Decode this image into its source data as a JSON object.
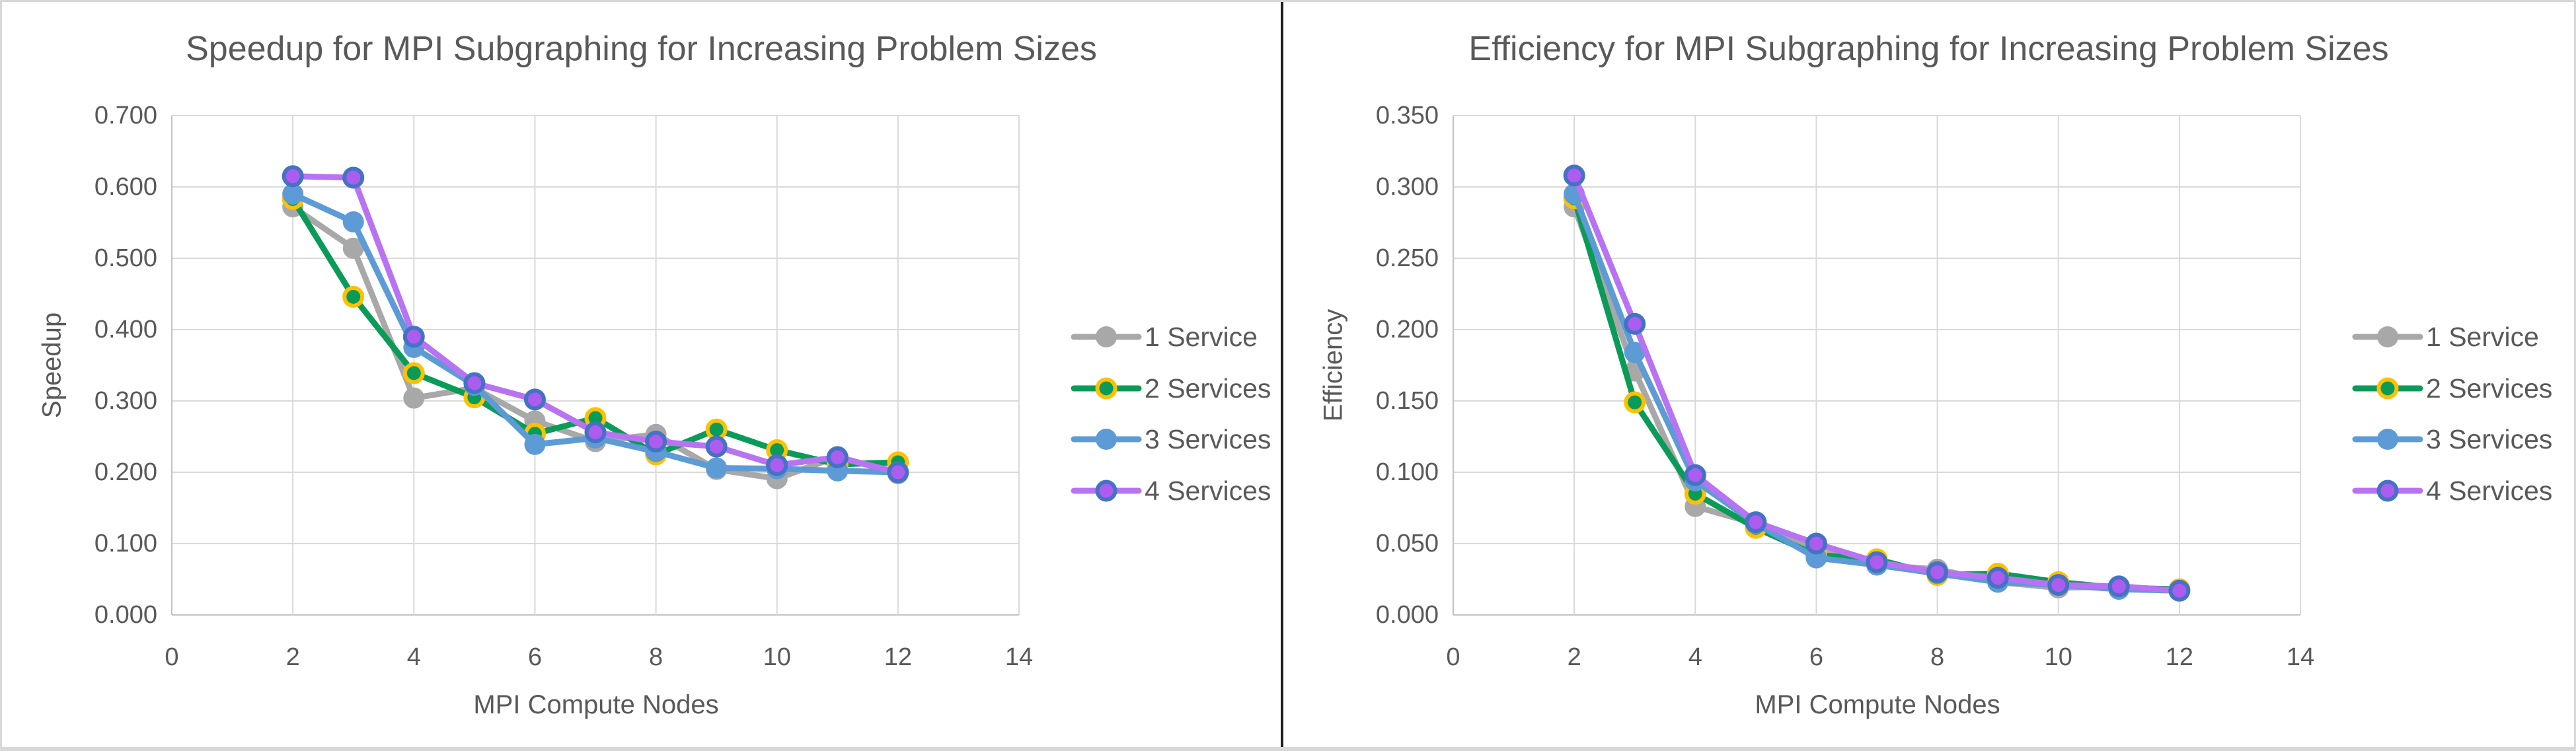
{
  "frame": {
    "background": "#ffffff",
    "border_color": "#d8d8d8",
    "divider_color": "#1f1f1f"
  },
  "styles": {
    "text_color": "#595959",
    "gridline_color": "#d9d9d9",
    "axis_line_color": "#c2c2c2",
    "series_styles": [
      {
        "key": "1-service",
        "line": "#a8a8a8",
        "marker_fill": "#a8a8a8",
        "marker_border": "#a8a8a8"
      },
      {
        "key": "2-services",
        "line": "#0a9b58",
        "marker_fill": "#0a9b58",
        "marker_border": "#ffc000"
      },
      {
        "key": "3-services",
        "line": "#5c9bd6",
        "marker_fill": "#5c9bd6",
        "marker_border": "#5c9bd6"
      },
      {
        "key": "4-services",
        "line": "#b873f2",
        "marker_fill": "#ad5cf0",
        "marker_border": "#4472c4"
      }
    ]
  },
  "chart_data": [
    {
      "type": "line",
      "title": "Speedup for MPI Subgraphing for Increasing Problem Sizes",
      "xlabel": "MPI Compute Nodes",
      "ylabel": "Speedup",
      "xlim": [
        0,
        14
      ],
      "ylim": [
        0.0,
        0.7
      ],
      "ytick_step": 0.1,
      "ytick_decimals": 3,
      "xticks": [
        0,
        2,
        4,
        6,
        8,
        10,
        12,
        14
      ],
      "grid": true,
      "legend_position": "right",
      "legend_entries": [
        "1 Service",
        "2 Services",
        "3 Services",
        "4 Services"
      ],
      "x": [
        2,
        3,
        4,
        5,
        6,
        7,
        8,
        9,
        10,
        11,
        12
      ],
      "series": [
        {
          "name": "1 Service",
          "values": [
            0.572,
            0.514,
            0.304,
            0.318,
            0.272,
            0.243,
            0.253,
            0.204,
            0.191,
            0.222,
            0.198
          ]
        },
        {
          "name": "2 Services",
          "values": [
            0.583,
            0.446,
            0.339,
            0.305,
            0.254,
            0.276,
            0.225,
            0.26,
            0.231,
            0.211,
            0.214
          ]
        },
        {
          "name": "3 Services",
          "values": [
            0.59,
            0.551,
            0.375,
            0.322,
            0.239,
            0.248,
            0.229,
            0.206,
            0.205,
            0.202,
            0.2
          ]
        },
        {
          "name": "4 Services",
          "values": [
            0.615,
            0.613,
            0.39,
            0.325,
            0.302,
            0.256,
            0.243,
            0.236,
            0.21,
            0.221,
            0.2
          ]
        }
      ]
    },
    {
      "type": "line",
      "title": "Efficiency for MPI Subgraphing for Increasing Problem Sizes",
      "xlabel": "MPI Compute Nodes",
      "ylabel": "Efficiency",
      "xlim": [
        0,
        14
      ],
      "ylim": [
        0.0,
        0.35
      ],
      "ytick_step": 0.05,
      "ytick_decimals": 3,
      "xticks": [
        0,
        2,
        4,
        6,
        8,
        10,
        12,
        14
      ],
      "grid": true,
      "legend_position": "right",
      "legend_entries": [
        "1 Service",
        "2 Services",
        "3 Services",
        "4 Services"
      ],
      "x": [
        2,
        3,
        4,
        5,
        6,
        7,
        8,
        9,
        10,
        11,
        12
      ],
      "series": [
        {
          "name": "1 Service",
          "values": [
            0.286,
            0.171,
            0.076,
            0.064,
            0.045,
            0.035,
            0.032,
            0.023,
            0.019,
            0.02,
            0.017
          ]
        },
        {
          "name": "2 Services",
          "values": [
            0.292,
            0.149,
            0.085,
            0.061,
            0.042,
            0.039,
            0.028,
            0.029,
            0.023,
            0.019,
            0.018
          ]
        },
        {
          "name": "3 Services",
          "values": [
            0.295,
            0.184,
            0.094,
            0.064,
            0.04,
            0.035,
            0.029,
            0.023,
            0.021,
            0.018,
            0.017
          ]
        },
        {
          "name": "4 Services",
          "values": [
            0.308,
            0.204,
            0.098,
            0.065,
            0.05,
            0.037,
            0.03,
            0.026,
            0.021,
            0.02,
            0.017
          ]
        }
      ]
    }
  ]
}
